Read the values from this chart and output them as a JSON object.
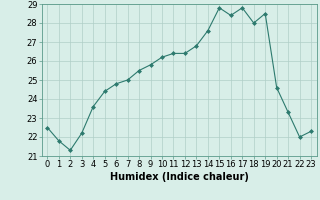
{
  "x": [
    0,
    1,
    2,
    3,
    4,
    5,
    6,
    7,
    8,
    9,
    10,
    11,
    12,
    13,
    14,
    15,
    16,
    17,
    18,
    19,
    20,
    21,
    22,
    23
  ],
  "y": [
    22.5,
    21.8,
    21.3,
    22.2,
    23.6,
    24.4,
    24.8,
    25.0,
    25.5,
    25.8,
    26.2,
    26.4,
    26.4,
    26.8,
    27.6,
    28.8,
    28.4,
    28.8,
    28.0,
    28.5,
    24.6,
    23.3,
    22.0,
    22.3
  ],
  "line_color": "#2d7a6e",
  "marker": "D",
  "marker_size": 2,
  "bg_color": "#d8eee8",
  "grid_color": "#b0cfc8",
  "xlabel": "Humidex (Indice chaleur)",
  "xlim": [
    -0.5,
    23.5
  ],
  "ylim": [
    21,
    29
  ],
  "yticks": [
    21,
    22,
    23,
    24,
    25,
    26,
    27,
    28,
    29
  ],
  "xticks": [
    0,
    1,
    2,
    3,
    4,
    5,
    6,
    7,
    8,
    9,
    10,
    11,
    12,
    13,
    14,
    15,
    16,
    17,
    18,
    19,
    20,
    21,
    22,
    23
  ],
  "tick_fontsize": 6.0,
  "xlabel_fontsize": 7.0
}
